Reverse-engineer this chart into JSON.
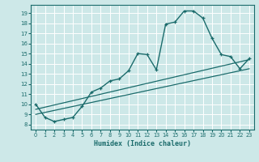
{
  "xlabel": "Humidex (Indice chaleur)",
  "xlim": [
    -0.5,
    23.5
  ],
  "ylim": [
    7.5,
    19.8
  ],
  "yticks": [
    8,
    9,
    10,
    11,
    12,
    13,
    14,
    15,
    16,
    17,
    18,
    19
  ],
  "xticks": [
    0,
    1,
    2,
    3,
    4,
    5,
    6,
    7,
    8,
    9,
    10,
    11,
    12,
    13,
    14,
    15,
    16,
    17,
    18,
    19,
    20,
    21,
    22,
    23
  ],
  "bg_color": "#cde8e8",
  "line_color": "#1a6b6b",
  "grid_color": "#ffffff",
  "series_main": {
    "x": [
      0,
      1,
      2,
      3,
      4,
      5,
      6,
      7,
      8,
      9,
      10,
      11,
      12,
      13,
      14,
      15,
      16,
      17,
      18,
      19,
      20,
      21,
      22,
      23
    ],
    "y": [
      10.0,
      8.7,
      8.3,
      8.5,
      8.7,
      9.8,
      11.2,
      11.6,
      12.3,
      12.5,
      13.3,
      15.0,
      14.9,
      13.4,
      17.9,
      18.1,
      19.2,
      19.2,
      18.5,
      16.5,
      14.9,
      14.7,
      13.5,
      14.5
    ]
  },
  "series_line1": {
    "x": [
      0,
      23
    ],
    "y": [
      9.5,
      14.4
    ]
  },
  "series_line2": {
    "x": [
      0,
      23
    ],
    "y": [
      9.0,
      13.5
    ]
  }
}
